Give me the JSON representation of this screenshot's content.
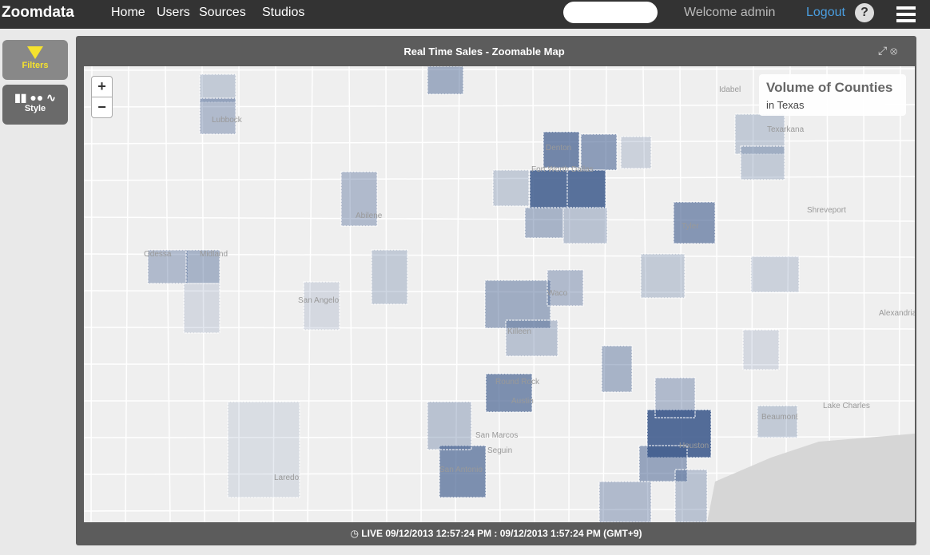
{
  "nav": {
    "brand": "Zoomdata",
    "items": [
      "Home",
      "Users",
      "Sources",
      "Studios"
    ],
    "welcome": "Welcome admin",
    "logout": "Logout",
    "help": "?"
  },
  "sidebar": {
    "filters": "Filters",
    "style": "Style"
  },
  "panel": {
    "title": "Real Time Sales - Zoomable Map",
    "zoom_in": "+",
    "zoom_out": "−",
    "legend": {
      "title": "Volume of Counties",
      "subtitle": "in Texas"
    },
    "footer": {
      "live": "LIVE",
      "range": "09/12/2013 12:57:24 PM : 09/12/2013 1:57:24 PM (GMT+9)"
    }
  },
  "map": {
    "labels": [
      "Lubbock",
      "Idabel",
      "Texarkana",
      "Denton",
      "Fort Worth",
      "Dallas",
      "Shreveport",
      "Tyler",
      "Abilene",
      "Midland",
      "Odessa",
      "San Angelo",
      "Waco",
      "Killeen",
      "Alexandria",
      "Round Rock",
      "Austin",
      "Lake Charles",
      "Beaumont",
      "San Marcos",
      "Seguin",
      "San Antonio",
      "Houston",
      "Laredo"
    ]
  }
}
